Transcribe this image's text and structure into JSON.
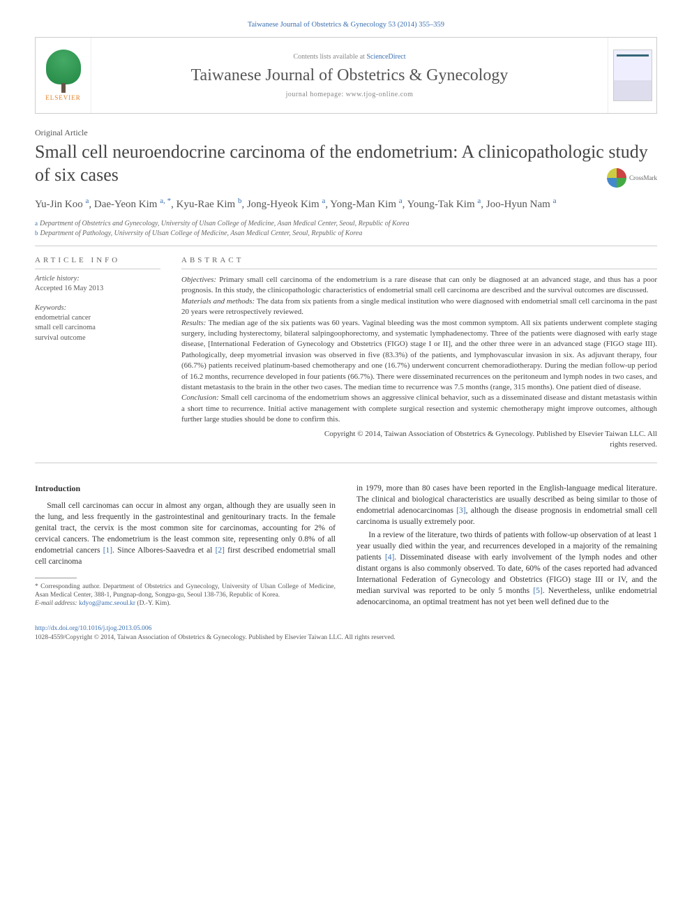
{
  "citation_header": "Taiwanese Journal of Obstetrics & Gynecology 53 (2014) 355–359",
  "header": {
    "contents_text": "Contents lists available at ",
    "science_direct": "ScienceDirect",
    "journal_name": "Taiwanese Journal of Obstetrics & Gynecology",
    "homepage_label": "journal homepage: www.tjog-online.com",
    "elsevier_label": "ELSEVIER"
  },
  "article_type": "Original Article",
  "title": "Small cell neuroendocrine carcinoma of the endometrium: A clinicopathologic study of six cases",
  "crossmark": "CrossMark",
  "authors_html": "Yu-Jin Koo |a|, Dae-Yeon Kim |a, *|, Kyu-Rae Kim |b|, Jong-Hyeok Kim |a|, Yong-Man Kim |a|, Young-Tak Kim |a|, Joo-Hyun Nam |a|",
  "authors": [
    {
      "name": "Yu-Jin Koo",
      "sup": "a"
    },
    {
      "name": "Dae-Yeon Kim",
      "sup": "a, *"
    },
    {
      "name": "Kyu-Rae Kim",
      "sup": "b"
    },
    {
      "name": "Jong-Hyeok Kim",
      "sup": "a"
    },
    {
      "name": "Yong-Man Kim",
      "sup": "a"
    },
    {
      "name": "Young-Tak Kim",
      "sup": "a"
    },
    {
      "name": "Joo-Hyun Nam",
      "sup": "a"
    }
  ],
  "affiliations": [
    {
      "key": "a",
      "text": "Department of Obstetrics and Gynecology, University of Ulsan College of Medicine, Asan Medical Center, Seoul, Republic of Korea"
    },
    {
      "key": "b",
      "text": "Department of Pathology, University of Ulsan College of Medicine, Asan Medical Center, Seoul, Republic of Korea"
    }
  ],
  "article_info_label": "ARTICLE INFO",
  "article_history_label": "Article history:",
  "article_history": "Accepted 16 May 2013",
  "keywords_label": "Keywords:",
  "keywords": [
    "endometrial cancer",
    "small cell carcinoma",
    "survival outcome"
  ],
  "abstract_label": "ABSTRACT",
  "abstract": {
    "objectives_label": "Objectives:",
    "objectives": " Primary small cell carcinoma of the endometrium is a rare disease that can only be diagnosed at an advanced stage, and thus has a poor prognosis. In this study, the clinicopathologic characteristics of endometrial small cell carcinoma are described and the survival outcomes are discussed.",
    "materials_label": "Materials and methods:",
    "materials": " The data from six patients from a single medical institution who were diagnosed with endometrial small cell carcinoma in the past 20 years were retrospectively reviewed.",
    "results_label": "Results:",
    "results": " The median age of the six patients was 60 years. Vaginal bleeding was the most common symptom. All six patients underwent complete staging surgery, including hysterectomy, bilateral salpingoophorectomy, and systematic lymphadenectomy. Three of the patients were diagnosed with early stage disease, [International Federation of Gynecology and Obstetrics (FIGO) stage I or II], and the other three were in an advanced stage (FIGO stage III). Pathologically, deep myometrial invasion was observed in five (83.3%) of the patients, and lymphovascular invasion in six. As adjuvant therapy, four (66.7%) patients received platinum-based chemotherapy and one (16.7%) underwent concurrent chemoradiotherapy. During the median follow-up period of 16.2 months, recurrence developed in four patients (66.7%). There were disseminated recurrences on the peritoneum and lymph nodes in two cases, and distant metastasis to the brain in the other two cases. The median time to recurrence was 7.5 months (range, 315 months). One patient died of disease.",
    "conclusion_label": "Conclusion:",
    "conclusion": " Small cell carcinoma of the endometrium shows an aggressive clinical behavior, such as a disseminated disease and distant metastasis within a short time to recurrence. Initial active management with complete surgical resection and systemic chemotherapy might improve outcomes, although further large studies should be done to confirm this.",
    "copyright_1": "Copyright © 2014, Taiwan Association of Obstetrics & Gynecology. Published by Elsevier Taiwan LLC. All",
    "copyright_2": "rights reserved."
  },
  "body": {
    "intro_heading": "Introduction",
    "intro_p1": "Small cell carcinomas can occur in almost any organ, although they are usually seen in the lung, and less frequently in the gastrointestinal and genitourinary tracts. In the female genital tract, the cervix is the most common site for carcinomas, accounting for 2% of cervical cancers. The endometrium is the least common site, representing only 0.8% of all endometrial cancers [1]. Since Albores-Saavedra et al [2] first described endometrial small cell carcinoma",
    "col2_p1": "in 1979, more than 80 cases have been reported in the English-language medical literature. The clinical and biological characteristics are usually described as being similar to those of endometrial adenocarcinomas [3], although the disease prognosis in endometrial small cell carcinoma is usually extremely poor.",
    "col2_p2": "In a review of the literature, two thirds of patients with follow-up observation of at least 1 year usually died within the year, and recurrences developed in a majority of the remaining patients [4]. Disseminated disease with early involvement of the lymph nodes and other distant organs is also commonly observed. To date, 60% of the cases reported had advanced International Federation of Gynecology and Obstetrics (FIGO) stage III or IV, and the median survival was reported to be only 5 months [5]. Nevertheless, unlike endometrial adenocarcinoma, an optimal treatment has not yet been well defined due to the"
  },
  "footnote": {
    "corresponding": "* Corresponding author. Department of Obstetrics and Gynecology, University of Ulsan College of Medicine, Asan Medical Center, 388-1, Pungnap-dong, Songpa-gu, Seoul 138-736, Republic of Korea.",
    "email_label": "E-mail address:",
    "email": "kdyog@amc.seoul.kr",
    "email_author": " (D.-Y. Kim)."
  },
  "doi_footer": {
    "doi": "http://dx.doi.org/10.1016/j.tjog.2013.05.006",
    "issn_line": "1028-4559/Copyright © 2014, Taiwan Association of Obstetrics & Gynecology. Published by Elsevier Taiwan LLC. All rights reserved."
  },
  "colors": {
    "link": "#3a6fb0",
    "text": "#333333",
    "muted": "#666666",
    "border": "#cccccc"
  }
}
